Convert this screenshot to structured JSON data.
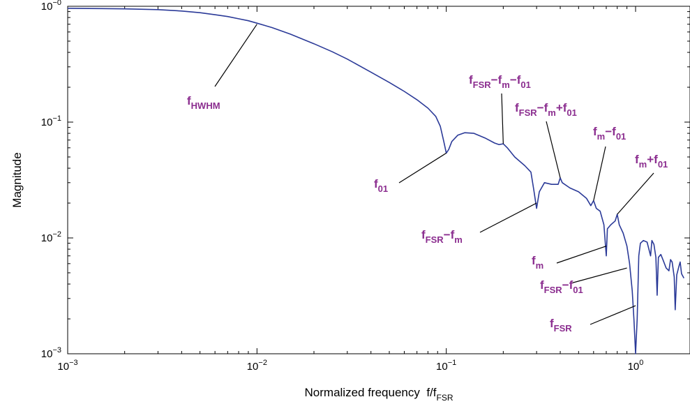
{
  "chart_data": {
    "type": "line",
    "xlabel_main": "Normalized frequency  f/f",
    "xlabel_sub": "FSR",
    "ylabel": "Magnitude",
    "x_scale": "log",
    "y_scale": "log",
    "xlim": [
      0.001,
      1.8
    ],
    "ylim": [
      0.001,
      1.0
    ],
    "grid": false,
    "x_ticks": [
      {
        "value": 0.001,
        "base": "10",
        "exp": "−3"
      },
      {
        "value": 0.01,
        "base": "10",
        "exp": "−2"
      },
      {
        "value": 0.1,
        "base": "10",
        "exp": "−1"
      },
      {
        "value": 1,
        "base": "10",
        "exp": "0"
      }
    ],
    "y_ticks": [
      {
        "value": 1,
        "base": "10",
        "exp": "−0"
      },
      {
        "value": 0.1,
        "base": "10",
        "exp": "−1"
      },
      {
        "value": 0.01,
        "base": "10",
        "exp": "−2"
      },
      {
        "value": 0.001,
        "base": "10",
        "exp": "−3"
      }
    ],
    "series": [
      {
        "color": "#2b3a98",
        "points": [
          [
            0.001,
            0.96
          ],
          [
            0.0015,
            0.955
          ],
          [
            0.002,
            0.95
          ],
          [
            0.003,
            0.935
          ],
          [
            0.004,
            0.91
          ],
          [
            0.005,
            0.88
          ],
          [
            0.006,
            0.845
          ],
          [
            0.007,
            0.815
          ],
          [
            0.008,
            0.78
          ],
          [
            0.009,
            0.75
          ],
          [
            0.01,
            0.715
          ],
          [
            0.012,
            0.655
          ],
          [
            0.015,
            0.575
          ],
          [
            0.02,
            0.475
          ],
          [
            0.025,
            0.405
          ],
          [
            0.03,
            0.35
          ],
          [
            0.04,
            0.27
          ],
          [
            0.05,
            0.22
          ],
          [
            0.06,
            0.184
          ],
          [
            0.07,
            0.156
          ],
          [
            0.08,
            0.132
          ],
          [
            0.088,
            0.112
          ],
          [
            0.093,
            0.092
          ],
          [
            0.097,
            0.068
          ],
          [
            0.1,
            0.054
          ],
          [
            0.103,
            0.058
          ],
          [
            0.107,
            0.068
          ],
          [
            0.115,
            0.077
          ],
          [
            0.125,
            0.081
          ],
          [
            0.14,
            0.08
          ],
          [
            0.16,
            0.073
          ],
          [
            0.18,
            0.066
          ],
          [
            0.19,
            0.064
          ],
          [
            0.2,
            0.065
          ],
          [
            0.21,
            0.06
          ],
          [
            0.23,
            0.05
          ],
          [
            0.26,
            0.042
          ],
          [
            0.28,
            0.037
          ],
          [
            0.29,
            0.026
          ],
          [
            0.3,
            0.018
          ],
          [
            0.31,
            0.025
          ],
          [
            0.33,
            0.03
          ],
          [
            0.36,
            0.029
          ],
          [
            0.39,
            0.029
          ],
          [
            0.4,
            0.033
          ],
          [
            0.41,
            0.03
          ],
          [
            0.45,
            0.027
          ],
          [
            0.5,
            0.025
          ],
          [
            0.55,
            0.022
          ],
          [
            0.58,
            0.019
          ],
          [
            0.6,
            0.021
          ],
          [
            0.62,
            0.018
          ],
          [
            0.65,
            0.017
          ],
          [
            0.68,
            0.013
          ],
          [
            0.7,
            0.007
          ],
          [
            0.71,
            0.012
          ],
          [
            0.74,
            0.013
          ],
          [
            0.78,
            0.014
          ],
          [
            0.8,
            0.016
          ],
          [
            0.82,
            0.013
          ],
          [
            0.86,
            0.011
          ],
          [
            0.9,
            0.0085
          ],
          [
            0.93,
            0.006
          ],
          [
            0.96,
            0.0035
          ],
          [
            0.98,
            0.002
          ],
          [
            1.0,
            0.001
          ],
          [
            1.02,
            0.002
          ],
          [
            1.04,
            0.007
          ],
          [
            1.06,
            0.009
          ],
          [
            1.1,
            0.0095
          ],
          [
            1.15,
            0.0092
          ],
          [
            1.2,
            0.007
          ],
          [
            1.22,
            0.0095
          ],
          [
            1.25,
            0.0088
          ],
          [
            1.28,
            0.0068
          ],
          [
            1.3,
            0.0032
          ],
          [
            1.32,
            0.0068
          ],
          [
            1.36,
            0.0072
          ],
          [
            1.4,
            0.0064
          ],
          [
            1.45,
            0.0055
          ],
          [
            1.5,
            0.0052
          ],
          [
            1.53,
            0.0065
          ],
          [
            1.56,
            0.0062
          ],
          [
            1.6,
            0.0046
          ],
          [
            1.62,
            0.0024
          ],
          [
            1.65,
            0.0048
          ],
          [
            1.7,
            0.0058
          ],
          [
            1.72,
            0.0062
          ],
          [
            1.75,
            0.0049
          ],
          [
            1.8,
            0.0045
          ]
        ]
      }
    ],
    "annotations": [
      {
        "name": "f-hwhm",
        "main": "f",
        "parts": [
          {
            "t": "HWHM",
            "s": true
          }
        ],
        "pt": [
          0.01,
          0.7
        ],
        "color": "#8b2d8f"
      },
      {
        "name": "f-01",
        "main": "f",
        "parts": [
          {
            "t": "01",
            "s": true
          }
        ],
        "pt": [
          0.1,
          0.054
        ],
        "color": "#8b2d8f"
      },
      {
        "name": "f-fsr-fm-f01",
        "main": "f",
        "parts": [
          {
            "t": "FSR",
            "s": true
          },
          {
            "t": "−f",
            "s": false
          },
          {
            "t": "m",
            "s": true
          },
          {
            "t": "−f",
            "s": false
          },
          {
            "t": "01",
            "s": true
          }
        ],
        "pt": [
          0.2,
          0.065
        ],
        "color": "#8b2d8f"
      },
      {
        "name": "f-fsr-fm-plus-f01",
        "main": "f",
        "parts": [
          {
            "t": "FSR",
            "s": true
          },
          {
            "t": "−f",
            "s": false
          },
          {
            "t": "m",
            "s": true
          },
          {
            "t": "+f",
            "s": false
          },
          {
            "t": "01",
            "s": true
          }
        ],
        "pt": [
          0.4,
          0.033
        ],
        "color": "#8b2d8f"
      },
      {
        "name": "f-m-f01",
        "main": "f",
        "parts": [
          {
            "t": "m",
            "s": true
          },
          {
            "t": "−f",
            "s": false
          },
          {
            "t": "01",
            "s": true
          }
        ],
        "pt": [
          0.6,
          0.021
        ],
        "color": "#8b2d8f"
      },
      {
        "name": "f-m-plus-f01",
        "main": "f",
        "parts": [
          {
            "t": "m",
            "s": true
          },
          {
            "t": "+f",
            "s": false
          },
          {
            "t": "01",
            "s": true
          }
        ],
        "pt": [
          0.8,
          0.016
        ],
        "color": "#8b2d8f"
      },
      {
        "name": "f-fsr-fm",
        "main": "f",
        "parts": [
          {
            "t": "FSR",
            "s": true
          },
          {
            "t": "−f",
            "s": false
          },
          {
            "t": "m",
            "s": true
          }
        ],
        "pt": [
          0.3,
          0.02
        ],
        "color": "#8b2d8f"
      },
      {
        "name": "f-m",
        "main": "f",
        "parts": [
          {
            "t": "m",
            "s": true
          }
        ],
        "pt": [
          0.7,
          0.0085
        ],
        "color": "#8b2d8f"
      },
      {
        "name": "f-fsr-f01",
        "main": "f",
        "parts": [
          {
            "t": "FSR",
            "s": true
          },
          {
            "t": "−f",
            "s": false
          },
          {
            "t": "01",
            "s": true
          }
        ],
        "pt": [
          0.9,
          0.0055
        ],
        "color": "#8b2d8f"
      },
      {
        "name": "f-fsr",
        "main": "f",
        "parts": [
          {
            "t": "FSR",
            "s": true
          }
        ],
        "pt": [
          1.0,
          0.0026
        ],
        "color": "#8b2d8f"
      }
    ]
  }
}
